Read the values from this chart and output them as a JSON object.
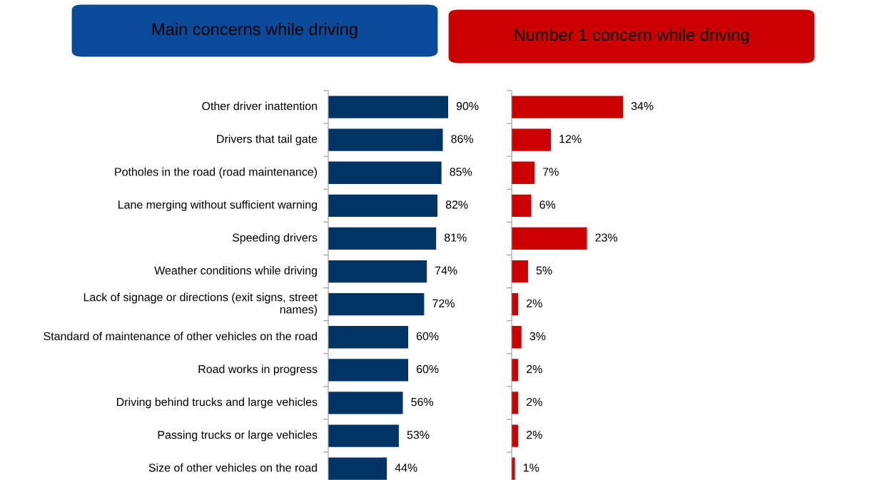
{
  "chart_data": [
    {
      "type": "bar",
      "orientation": "horizontal",
      "title": "Main concerns while driving",
      "color": "#003366",
      "tick_labels": "y",
      "categories": [
        "Other driver inattention",
        "Drivers that tail gate",
        "Potholes in the road (road maintenance)",
        "Lane merging without sufficient warning",
        "Speeding drivers",
        "Weather conditions while driving",
        "Lack of signage or directions (exit signs, street\nnames)",
        "Standard of maintenance of other vehicles on the road",
        "Road works in progress",
        "Driving behind trucks and large vehicles",
        "Passing trucks or large vehicles",
        "Size of other vehicles on the road"
      ],
      "values": [
        90,
        86,
        85,
        82,
        81,
        74,
        72,
        60,
        60,
        56,
        53,
        44
      ],
      "value_labels": [
        "90%",
        "86%",
        "85%",
        "82%",
        "81%",
        "74%",
        "72%",
        "60%",
        "60%",
        "56%",
        "53%",
        "44%"
      ]
    },
    {
      "type": "bar",
      "orientation": "horizontal",
      "title": "Number 1 concern while driving",
      "color": "#cc0000",
      "tick_labels": false,
      "categories": [
        null,
        null,
        null,
        null,
        null,
        null,
        null,
        null,
        null,
        null,
        null,
        null
      ],
      "values": [
        34,
        12,
        7,
        6,
        23,
        5,
        2,
        3,
        2,
        2,
        2,
        1
      ],
      "value_labels": [
        "34%",
        "12%",
        "7%",
        "6%",
        "23%",
        "5%",
        "2%",
        "3%",
        "2%",
        "2%",
        "2%",
        "1%"
      ]
    }
  ]
}
